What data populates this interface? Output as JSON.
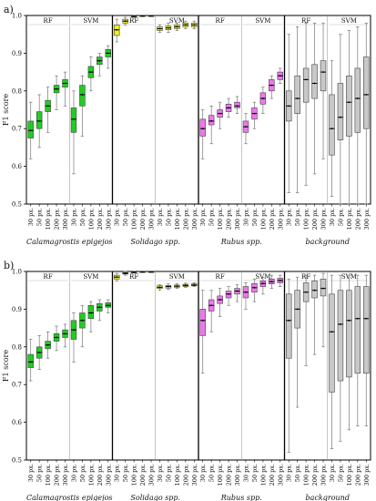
{
  "chart_data": [
    {
      "type": "box",
      "panel_label": "a)",
      "ylabel": "F1 score",
      "ylim": [
        0.5,
        1.0
      ],
      "yticks": [
        0.5,
        0.6,
        0.7,
        0.8,
        0.9,
        1.0
      ],
      "categories": [
        "30 px.",
        "50 px.",
        "100 px.",
        "200 px.",
        "300 px."
      ],
      "groups": [
        {
          "name": "Calamagrostis epigejos",
          "color": "#22cc22",
          "methods": [
            {
              "name": "RF",
              "boxes": [
                {
                  "min": 0.62,
                  "q1": 0.675,
                  "median": 0.695,
                  "q3": 0.72,
                  "max": 0.77
                },
                {
                  "min": 0.65,
                  "q1": 0.7,
                  "median": 0.72,
                  "q3": 0.745,
                  "max": 0.79
                },
                {
                  "min": 0.69,
                  "q1": 0.745,
                  "median": 0.76,
                  "q3": 0.775,
                  "max": 0.81
                },
                {
                  "min": 0.75,
                  "q1": 0.795,
                  "median": 0.805,
                  "q3": 0.815,
                  "max": 0.84
                },
                {
                  "min": 0.76,
                  "q1": 0.81,
                  "median": 0.82,
                  "q3": 0.83,
                  "max": 0.85
                }
              ]
            },
            {
              "name": "SVM",
              "boxes": [
                {
                  "min": 0.58,
                  "q1": 0.69,
                  "median": 0.725,
                  "q3": 0.755,
                  "max": 0.8
                },
                {
                  "min": 0.68,
                  "q1": 0.76,
                  "median": 0.79,
                  "q3": 0.815,
                  "max": 0.84
                },
                {
                  "min": 0.8,
                  "q1": 0.835,
                  "median": 0.85,
                  "q3": 0.865,
                  "max": 0.89
                },
                {
                  "min": 0.84,
                  "q1": 0.87,
                  "median": 0.88,
                  "q3": 0.89,
                  "max": 0.9
                },
                {
                  "min": 0.86,
                  "q1": 0.89,
                  "median": 0.9,
                  "q3": 0.91,
                  "max": 0.92
                }
              ]
            }
          ]
        },
        {
          "name": "Solidago spp.",
          "color": "#eeee22",
          "methods": [
            {
              "name": "RF",
              "boxes": [
                {
                  "min": 0.93,
                  "q1": 0.947,
                  "median": 0.962,
                  "q3": 0.975,
                  "max": 0.99
                },
                {
                  "min": 0.975,
                  "q1": 0.98,
                  "median": 0.985,
                  "q3": 0.99,
                  "max": 0.995
                },
                {
                  "min": 0.995,
                  "q1": 0.997,
                  "median": 0.998,
                  "q3": 0.999,
                  "max": 1.0
                },
                {
                  "min": 0.997,
                  "q1": 0.998,
                  "median": 0.999,
                  "q3": 1.0,
                  "max": 1.0
                },
                {
                  "min": 0.998,
                  "q1": 0.999,
                  "median": 0.999,
                  "q3": 1.0,
                  "max": 1.0
                }
              ]
            },
            {
              "name": "SVM",
              "boxes": [
                {
                  "min": 0.955,
                  "q1": 0.96,
                  "median": 0.965,
                  "q3": 0.97,
                  "max": 0.975
                },
                {
                  "min": 0.955,
                  "q1": 0.962,
                  "median": 0.967,
                  "q3": 0.972,
                  "max": 0.98
                },
                {
                  "min": 0.96,
                  "q1": 0.965,
                  "median": 0.97,
                  "q3": 0.975,
                  "max": 0.98
                },
                {
                  "min": 0.965,
                  "q1": 0.97,
                  "median": 0.975,
                  "q3": 0.98,
                  "max": 0.985
                },
                {
                  "min": 0.965,
                  "q1": 0.97,
                  "median": 0.975,
                  "q3": 0.98,
                  "max": 0.985
                }
              ]
            }
          ]
        },
        {
          "name": "Rubus spp.",
          "color": "#ee77ee",
          "methods": [
            {
              "name": "RF",
              "boxes": [
                {
                  "min": 0.62,
                  "q1": 0.68,
                  "median": 0.7,
                  "q3": 0.725,
                  "max": 0.75
                },
                {
                  "min": 0.66,
                  "q1": 0.71,
                  "median": 0.72,
                  "q3": 0.735,
                  "max": 0.76
                },
                {
                  "min": 0.7,
                  "q1": 0.73,
                  "median": 0.74,
                  "q3": 0.75,
                  "max": 0.77
                },
                {
                  "min": 0.73,
                  "q1": 0.745,
                  "median": 0.755,
                  "q3": 0.765,
                  "max": 0.78
                },
                {
                  "min": 0.74,
                  "q1": 0.755,
                  "median": 0.76,
                  "q3": 0.77,
                  "max": 0.785
                }
              ]
            },
            {
              "name": "SVM",
              "boxes": [
                {
                  "min": 0.66,
                  "q1": 0.69,
                  "median": 0.705,
                  "q3": 0.72,
                  "max": 0.74
                },
                {
                  "min": 0.7,
                  "q1": 0.725,
                  "median": 0.74,
                  "q3": 0.755,
                  "max": 0.77
                },
                {
                  "min": 0.74,
                  "q1": 0.765,
                  "median": 0.78,
                  "q3": 0.795,
                  "max": 0.81
                },
                {
                  "min": 0.78,
                  "q1": 0.8,
                  "median": 0.815,
                  "q3": 0.83,
                  "max": 0.84
                },
                {
                  "min": 0.82,
                  "q1": 0.83,
                  "median": 0.84,
                  "q3": 0.85,
                  "max": 0.86
                }
              ]
            }
          ]
        },
        {
          "name": "background",
          "color": "#c8c8c8",
          "methods": [
            {
              "name": "RF",
              "boxes": [
                {
                  "min": 0.53,
                  "q1": 0.72,
                  "median": 0.76,
                  "q3": 0.8,
                  "max": 0.95
                },
                {
                  "min": 0.53,
                  "q1": 0.74,
                  "median": 0.78,
                  "q3": 0.84,
                  "max": 0.97
                },
                {
                  "min": 0.55,
                  "q1": 0.77,
                  "median": 0.83,
                  "q3": 0.86,
                  "max": 0.98
                },
                {
                  "min": 0.58,
                  "q1": 0.78,
                  "median": 0.82,
                  "q3": 0.87,
                  "max": 0.98
                },
                {
                  "min": 0.62,
                  "q1": 0.8,
                  "median": 0.85,
                  "q3": 0.88,
                  "max": 0.98
                }
              ]
            },
            {
              "name": "SVM",
              "boxes": [
                {
                  "min": 0.52,
                  "q1": 0.63,
                  "median": 0.7,
                  "q3": 0.79,
                  "max": 0.88
                },
                {
                  "min": 0.5,
                  "q1": 0.67,
                  "median": 0.73,
                  "q3": 0.82,
                  "max": 0.95
                },
                {
                  "min": 0.5,
                  "q1": 0.68,
                  "median": 0.77,
                  "q3": 0.84,
                  "max": 0.96
                },
                {
                  "min": 0.5,
                  "q1": 0.69,
                  "median": 0.78,
                  "q3": 0.86,
                  "max": 0.97
                },
                {
                  "min": 0.5,
                  "q1": 0.7,
                  "median": 0.79,
                  "q3": 0.89,
                  "max": 0.98
                }
              ]
            }
          ]
        }
      ]
    },
    {
      "type": "box",
      "panel_label": "b)",
      "ylabel": "F1 score",
      "ylim": [
        0.5,
        1.0
      ],
      "yticks": [
        0.5,
        0.6,
        0.7,
        0.8,
        0.9,
        1.0
      ],
      "categories": [
        "30 px.",
        "50 px.",
        "100 px.",
        "200 px.",
        "300 px."
      ],
      "groups": [
        {
          "name": "Calamagrostis epigejos",
          "color": "#22cc22",
          "methods": [
            {
              "name": "RF",
              "boxes": [
                {
                  "min": 0.71,
                  "q1": 0.745,
                  "median": 0.76,
                  "q3": 0.78,
                  "max": 0.82
                },
                {
                  "min": 0.74,
                  "q1": 0.77,
                  "median": 0.785,
                  "q3": 0.8,
                  "max": 0.83
                },
                {
                  "min": 0.77,
                  "q1": 0.795,
                  "median": 0.805,
                  "q3": 0.815,
                  "max": 0.84
                },
                {
                  "min": 0.79,
                  "q1": 0.815,
                  "median": 0.825,
                  "q3": 0.835,
                  "max": 0.855
                },
                {
                  "min": 0.8,
                  "q1": 0.825,
                  "median": 0.835,
                  "q3": 0.845,
                  "max": 0.86
                }
              ]
            },
            {
              "name": "SVM",
              "boxes": [
                {
                  "min": 0.76,
                  "q1": 0.82,
                  "median": 0.845,
                  "q3": 0.87,
                  "max": 0.89
                },
                {
                  "min": 0.8,
                  "q1": 0.85,
                  "median": 0.87,
                  "q3": 0.89,
                  "max": 0.91
                },
                {
                  "min": 0.84,
                  "q1": 0.875,
                  "median": 0.89,
                  "q3": 0.91,
                  "max": 0.92
                },
                {
                  "min": 0.87,
                  "q1": 0.895,
                  "median": 0.905,
                  "q3": 0.915,
                  "max": 0.925
                },
                {
                  "min": 0.89,
                  "q1": 0.905,
                  "median": 0.91,
                  "q3": 0.917,
                  "max": 0.925
                }
              ]
            }
          ]
        },
        {
          "name": "Solidago spp.",
          "color": "#eeee22",
          "methods": [
            {
              "name": "RF",
              "boxes": [
                {
                  "min": 0.975,
                  "q1": 0.98,
                  "median": 0.985,
                  "q3": 0.99,
                  "max": 0.995
                },
                {
                  "min": 0.99,
                  "q1": 0.993,
                  "median": 0.995,
                  "q3": 0.997,
                  "max": 1.0
                },
                {
                  "min": 0.996,
                  "q1": 0.997,
                  "median": 0.998,
                  "q3": 0.999,
                  "max": 1.0
                },
                {
                  "min": 0.997,
                  "q1": 0.998,
                  "median": 0.999,
                  "q3": 1.0,
                  "max": 1.0
                },
                {
                  "min": 0.998,
                  "q1": 0.999,
                  "median": 0.999,
                  "q3": 1.0,
                  "max": 1.0
                }
              ]
            },
            {
              "name": "SVM",
              "boxes": [
                {
                  "min": 0.95,
                  "q1": 0.955,
                  "median": 0.958,
                  "q3": 0.962,
                  "max": 0.965
                },
                {
                  "min": 0.952,
                  "q1": 0.956,
                  "median": 0.96,
                  "q3": 0.963,
                  "max": 0.967
                },
                {
                  "min": 0.955,
                  "q1": 0.958,
                  "median": 0.961,
                  "q3": 0.964,
                  "max": 0.968
                },
                {
                  "min": 0.958,
                  "q1": 0.96,
                  "median": 0.963,
                  "q3": 0.966,
                  "max": 0.969
                },
                {
                  "min": 0.96,
                  "q1": 0.962,
                  "median": 0.964,
                  "q3": 0.967,
                  "max": 0.97
                }
              ]
            }
          ]
        },
        {
          "name": "Rubus spp.",
          "color": "#ee77ee",
          "methods": [
            {
              "name": "RF",
              "boxes": [
                {
                  "min": 0.73,
                  "q1": 0.83,
                  "median": 0.87,
                  "q3": 0.9,
                  "max": 0.95
                },
                {
                  "min": 0.84,
                  "q1": 0.895,
                  "median": 0.91,
                  "q3": 0.925,
                  "max": 0.95
                },
                {
                  "min": 0.88,
                  "q1": 0.915,
                  "median": 0.925,
                  "q3": 0.935,
                  "max": 0.955
                },
                {
                  "min": 0.91,
                  "q1": 0.93,
                  "median": 0.94,
                  "q3": 0.948,
                  "max": 0.96
                },
                {
                  "min": 0.92,
                  "q1": 0.94,
                  "median": 0.948,
                  "q3": 0.955,
                  "max": 0.965
                }
              ]
            },
            {
              "name": "SVM",
              "boxes": [
                {
                  "min": 0.9,
                  "q1": 0.93,
                  "median": 0.945,
                  "q3": 0.96,
                  "max": 0.97
                },
                {
                  "min": 0.92,
                  "q1": 0.945,
                  "median": 0.957,
                  "q3": 0.968,
                  "max": 0.98
                },
                {
                  "min": 0.94,
                  "q1": 0.96,
                  "median": 0.968,
                  "q3": 0.975,
                  "max": 0.985
                },
                {
                  "min": 0.955,
                  "q1": 0.967,
                  "median": 0.973,
                  "q3": 0.98,
                  "max": 0.99
                },
                {
                  "min": 0.96,
                  "q1": 0.97,
                  "median": 0.976,
                  "q3": 0.982,
                  "max": 0.99
                }
              ]
            }
          ]
        },
        {
          "name": "background",
          "color": "#c8c8c8",
          "methods": [
            {
              "name": "RF",
              "boxes": [
                {
                  "min": 0.52,
                  "q1": 0.77,
                  "median": 0.87,
                  "q3": 0.94,
                  "max": 0.98
                },
                {
                  "min": 0.64,
                  "q1": 0.85,
                  "median": 0.9,
                  "q3": 0.95,
                  "max": 0.985
                },
                {
                  "min": 0.75,
                  "q1": 0.92,
                  "median": 0.945,
                  "q3": 0.97,
                  "max": 0.99
                },
                {
                  "min": 0.78,
                  "q1": 0.93,
                  "median": 0.95,
                  "q3": 0.975,
                  "max": 0.99
                },
                {
                  "min": 0.8,
                  "q1": 0.935,
                  "median": 0.955,
                  "q3": 0.98,
                  "max": 0.995
                }
              ]
            },
            {
              "name": "SVM",
              "boxes": [
                {
                  "min": 0.53,
                  "q1": 0.68,
                  "median": 0.84,
                  "q3": 0.94,
                  "max": 0.99
                },
                {
                  "min": 0.55,
                  "q1": 0.71,
                  "median": 0.86,
                  "q3": 0.95,
                  "max": 0.99
                },
                {
                  "min": 0.58,
                  "q1": 0.72,
                  "median": 0.87,
                  "q3": 0.95,
                  "max": 0.99
                },
                {
                  "min": 0.59,
                  "q1": 0.73,
                  "median": 0.875,
                  "q3": 0.96,
                  "max": 0.99
                },
                {
                  "min": 0.59,
                  "q1": 0.73,
                  "median": 0.875,
                  "q3": 0.96,
                  "max": 0.99
                }
              ]
            }
          ]
        }
      ]
    }
  ]
}
